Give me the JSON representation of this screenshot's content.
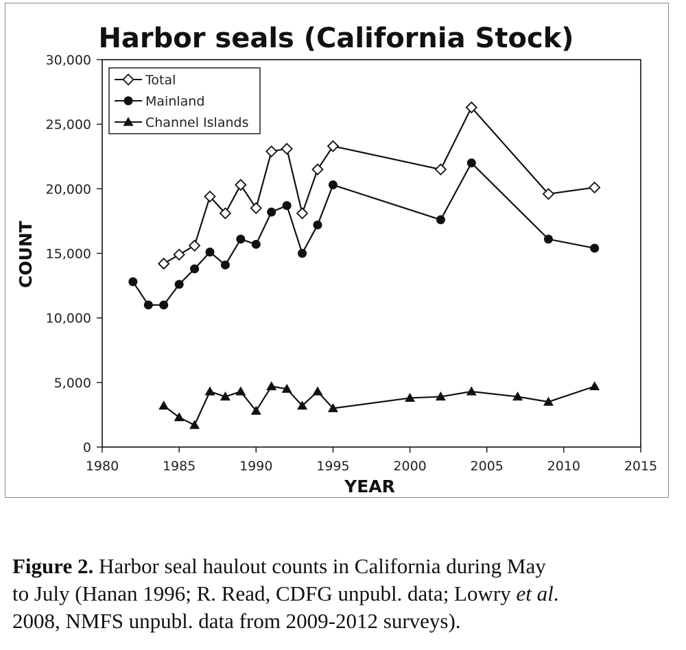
{
  "chart_data": {
    "type": "line",
    "title": "Harbor seals (California Stock)",
    "xlabel": "YEAR",
    "ylabel": "COUNT",
    "xlim": [
      1980,
      2015
    ],
    "ylim": [
      0,
      30000
    ],
    "x_ticks": [
      1980,
      1985,
      1990,
      1995,
      2000,
      2005,
      2010,
      2015
    ],
    "y_ticks": [
      0,
      5000,
      10000,
      15000,
      20000,
      25000,
      30000
    ],
    "x_tick_labels": [
      "1980",
      "1985",
      "1990",
      "1995",
      "2000",
      "2005",
      "2010",
      "2015"
    ],
    "y_tick_labels": [
      "0",
      "5,000",
      "10,000",
      "15,000",
      "20,000",
      "25,000",
      "30,000"
    ],
    "grid": false,
    "legend_position": "top-left",
    "series": [
      {
        "name": "Total",
        "marker": "open-diamond",
        "color": "#111111",
        "points": [
          [
            1984,
            14200
          ],
          [
            1985,
            14900
          ],
          [
            1986,
            15600
          ],
          [
            1987,
            19400
          ],
          [
            1988,
            18100
          ],
          [
            1989,
            20300
          ],
          [
            1990,
            18500
          ],
          [
            1991,
            22900
          ],
          [
            1992,
            23100
          ],
          [
            1993,
            18100
          ],
          [
            1994,
            21500
          ],
          [
            1995,
            23300
          ],
          [
            2002,
            21500
          ],
          [
            2004,
            26300
          ],
          [
            2009,
            19600
          ],
          [
            2012,
            20100
          ]
        ]
      },
      {
        "name": "Mainland",
        "marker": "filled-circle",
        "color": "#111111",
        "points": [
          [
            1982,
            12800
          ],
          [
            1983,
            11000
          ],
          [
            1984,
            11000
          ],
          [
            1985,
            12600
          ],
          [
            1986,
            13800
          ],
          [
            1987,
            15100
          ],
          [
            1988,
            14100
          ],
          [
            1989,
            16100
          ],
          [
            1990,
            15700
          ],
          [
            1991,
            18200
          ],
          [
            1992,
            18700
          ],
          [
            1993,
            15000
          ],
          [
            1994,
            17200
          ],
          [
            1995,
            20300
          ],
          [
            2002,
            17600
          ],
          [
            2004,
            22000
          ],
          [
            2009,
            16100
          ],
          [
            2012,
            15400
          ]
        ]
      },
      {
        "name": "Channel Islands",
        "marker": "filled-triangle",
        "color": "#111111",
        "points": [
          [
            1984,
            3200
          ],
          [
            1985,
            2300
          ],
          [
            1986,
            1700
          ],
          [
            1987,
            4300
          ],
          [
            1988,
            3900
          ],
          [
            1989,
            4300
          ],
          [
            1990,
            2800
          ],
          [
            1991,
            4700
          ],
          [
            1992,
            4500
          ],
          [
            1993,
            3200
          ],
          [
            1994,
            4300
          ],
          [
            1995,
            3000
          ],
          [
            2000,
            3800
          ],
          [
            2002,
            3900
          ],
          [
            2004,
            4300
          ],
          [
            2007,
            3900
          ],
          [
            2009,
            3500
          ],
          [
            2012,
            4700
          ]
        ]
      }
    ]
  },
  "caption": {
    "label": "Figure 2.",
    "line1": " Harbor seal haulout counts in California during May",
    "line2_a": "to July (Hanan 1996; R. Read, CDFG unpubl. data; Lowry ",
    "line2_italic": "et al",
    "line2_b": ".",
    "line3": "2008, NMFS unpubl. data from 2009-2012 surveys)."
  }
}
